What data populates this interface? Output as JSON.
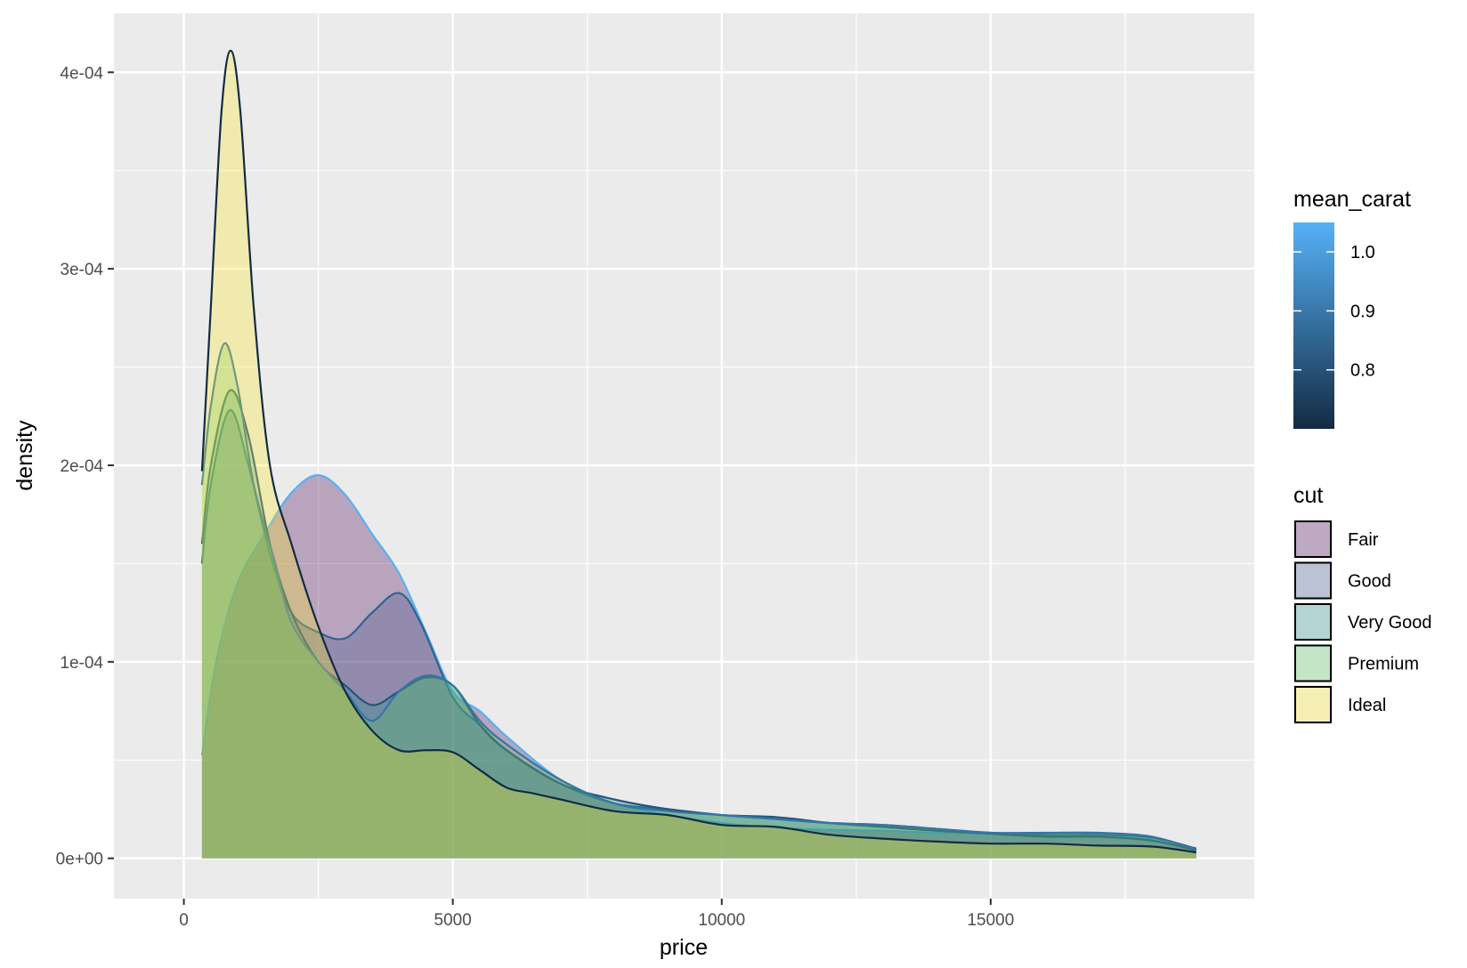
{
  "chart_data": {
    "type": "area",
    "xlabel": "price",
    "ylabel": "density",
    "xlim": [
      -1300,
      19900
    ],
    "ylim": [
      -2.05e-05,
      0.00043
    ],
    "x_ticks": [
      0,
      5000,
      10000,
      15000
    ],
    "x_tick_labels": [
      "0",
      "5000",
      "10000",
      "15000"
    ],
    "y_ticks": [
      0,
      0.0001,
      0.0002,
      0.0003,
      0.0004
    ],
    "y_tick_labels": [
      "0e+00",
      "1e-04",
      "2e-04",
      "3e-04",
      "4e-04"
    ],
    "grid": true,
    "legend_position": "right",
    "color_legend": {
      "title": "mean_carat",
      "range": [
        0.7,
        1.05
      ],
      "ticks": [
        0.8,
        0.9,
        1.0
      ],
      "tick_labels": [
        "0.8",
        "0.9",
        "1.0"
      ],
      "low_color": "#132B43",
      "high_color": "#56B1F7"
    },
    "fill_legend": {
      "title": "cut",
      "entries": [
        "Fair",
        "Good",
        "Very Good",
        "Premium",
        "Ideal"
      ]
    },
    "fill_colors": [
      "#440154",
      "#3B528B",
      "#21908C",
      "#5DC863",
      "#FDE725"
    ],
    "series": [
      {
        "name": "Fair",
        "mean_carat": 1.05,
        "points": [
          [
            337,
            5.25e-05
          ],
          [
            600,
            0.0001
          ],
          [
            1000,
            0.00014
          ],
          [
            1500,
            0.000165
          ],
          [
            2000,
            0.000186
          ],
          [
            2500,
            0.000195
          ],
          [
            3000,
            0.000185
          ],
          [
            3500,
            0.000165
          ],
          [
            4000,
            0.000145
          ],
          [
            4500,
            0.000115
          ],
          [
            5000,
            8.5e-05
          ],
          [
            5500,
            7.5e-05
          ],
          [
            6000,
            6.2e-05
          ],
          [
            7000,
            4e-05
          ],
          [
            8000,
            2.8e-05
          ],
          [
            9000,
            2.2e-05
          ],
          [
            10000,
            1.8e-05
          ],
          [
            11000,
            1.55e-05
          ],
          [
            12000,
            1.45e-05
          ],
          [
            13000,
            1.4e-05
          ],
          [
            14000,
            1.3e-05
          ],
          [
            15000,
            1.25e-05
          ],
          [
            16000,
            1.2e-05
          ],
          [
            17000,
            1.15e-05
          ],
          [
            18000,
            9.5e-06
          ],
          [
            18823,
            4.5e-06
          ]
        ]
      },
      {
        "name": "Good",
        "mean_carat": 0.85,
        "points": [
          [
            337,
            0.00015
          ],
          [
            500,
            0.00019
          ],
          [
            850,
            0.000228
          ],
          [
            1200,
            0.0002
          ],
          [
            1600,
            0.000155
          ],
          [
            2000,
            0.000125
          ],
          [
            2500,
            0.000115
          ],
          [
            3000,
            0.000112
          ],
          [
            3500,
            0.000125
          ],
          [
            4000,
            0.000135
          ],
          [
            4400,
            0.00012
          ],
          [
            5000,
            8.2e-05
          ],
          [
            5500,
            6.8e-05
          ],
          [
            6000,
            5.5e-05
          ],
          [
            7000,
            3.8e-05
          ],
          [
            8000,
            2.8e-05
          ],
          [
            9000,
            2.5e-05
          ],
          [
            10000,
            2.2e-05
          ],
          [
            11000,
            2e-05
          ],
          [
            12000,
            1.8e-05
          ],
          [
            13000,
            1.7e-05
          ],
          [
            14000,
            1.5e-05
          ],
          [
            15000,
            1.3e-05
          ],
          [
            16000,
            1.2e-05
          ],
          [
            17000,
            1.2e-05
          ],
          [
            18000,
            1.05e-05
          ],
          [
            18823,
            5e-06
          ]
        ]
      },
      {
        "name": "Very Good",
        "mean_carat": 0.81,
        "points": [
          [
            337,
            0.00016
          ],
          [
            500,
            0.0002
          ],
          [
            850,
            0.000238
          ],
          [
            1200,
            0.000215
          ],
          [
            1600,
            0.00016
          ],
          [
            2000,
            0.000125
          ],
          [
            2500,
            0.0001
          ],
          [
            3000,
            8.8e-05
          ],
          [
            3500,
            7.8e-05
          ],
          [
            4000,
            8.5e-05
          ],
          [
            4500,
            9.2e-05
          ],
          [
            5000,
            8.8e-05
          ],
          [
            5500,
            6.8e-05
          ],
          [
            6000,
            5.5e-05
          ],
          [
            7000,
            3.8e-05
          ],
          [
            8000,
            3e-05
          ],
          [
            9000,
            2.5e-05
          ],
          [
            10000,
            2.2e-05
          ],
          [
            11000,
            2.1e-05
          ],
          [
            12000,
            1.8e-05
          ],
          [
            13000,
            1.6e-05
          ],
          [
            14000,
            1.4e-05
          ],
          [
            15000,
            1.25e-05
          ],
          [
            16000,
            1.1e-05
          ],
          [
            17000,
            1.1e-05
          ],
          [
            18000,
            9e-06
          ],
          [
            18823,
            4e-06
          ]
        ]
      },
      {
        "name": "Premium",
        "mean_carat": 0.89,
        "points": [
          [
            337,
            0.00019
          ],
          [
            500,
            0.00023
          ],
          [
            750,
            0.000262
          ],
          [
            1000,
            0.00024
          ],
          [
            1300,
            0.00019
          ],
          [
            1700,
            0.00015
          ],
          [
            2000,
            0.00012
          ],
          [
            2500,
            0.0001
          ],
          [
            3000,
            8.5e-05
          ],
          [
            3500,
            7e-05
          ],
          [
            4000,
            8.5e-05
          ],
          [
            4500,
            9.3e-05
          ],
          [
            5000,
            8.8e-05
          ],
          [
            5500,
            7e-05
          ],
          [
            6000,
            5.8e-05
          ],
          [
            7000,
            4e-05
          ],
          [
            8000,
            2.8e-05
          ],
          [
            9000,
            2.4e-05
          ],
          [
            10000,
            2.2e-05
          ],
          [
            11000,
            2e-05
          ],
          [
            12000,
            1.8e-05
          ],
          [
            13000,
            1.7e-05
          ],
          [
            14000,
            1.5e-05
          ],
          [
            15000,
            1.3e-05
          ],
          [
            16000,
            1.3e-05
          ],
          [
            17000,
            1.3e-05
          ],
          [
            18000,
            1.1e-05
          ],
          [
            18823,
            4.5e-06
          ]
        ]
      },
      {
        "name": "Ideal",
        "mean_carat": 0.7,
        "points": [
          [
            337,
            0.000197
          ],
          [
            500,
            0.00028
          ],
          [
            700,
            0.00038
          ],
          [
            870,
            0.000411
          ],
          [
            1050,
            0.00038
          ],
          [
            1300,
            0.00028
          ],
          [
            1600,
            0.0002
          ],
          [
            2000,
            0.00016
          ],
          [
            2500,
            0.000118
          ],
          [
            3000,
            8.5e-05
          ],
          [
            3500,
            6.5e-05
          ],
          [
            4000,
            5.5e-05
          ],
          [
            4500,
            5.5e-05
          ],
          [
            5000,
            5.4e-05
          ],
          [
            5500,
            4.5e-05
          ],
          [
            6000,
            3.6e-05
          ],
          [
            6500,
            3.3e-05
          ],
          [
            7000,
            3e-05
          ],
          [
            8000,
            2.4e-05
          ],
          [
            9000,
            2.2e-05
          ],
          [
            10000,
            1.7e-05
          ],
          [
            11000,
            1.6e-05
          ],
          [
            12000,
            1.2e-05
          ],
          [
            13000,
            1e-05
          ],
          [
            14000,
            8.5e-06
          ],
          [
            15000,
            7.5e-06
          ],
          [
            16000,
            7.5e-06
          ],
          [
            17000,
            6.5e-06
          ],
          [
            18000,
            6e-06
          ],
          [
            18823,
            3e-06
          ]
        ]
      }
    ]
  }
}
